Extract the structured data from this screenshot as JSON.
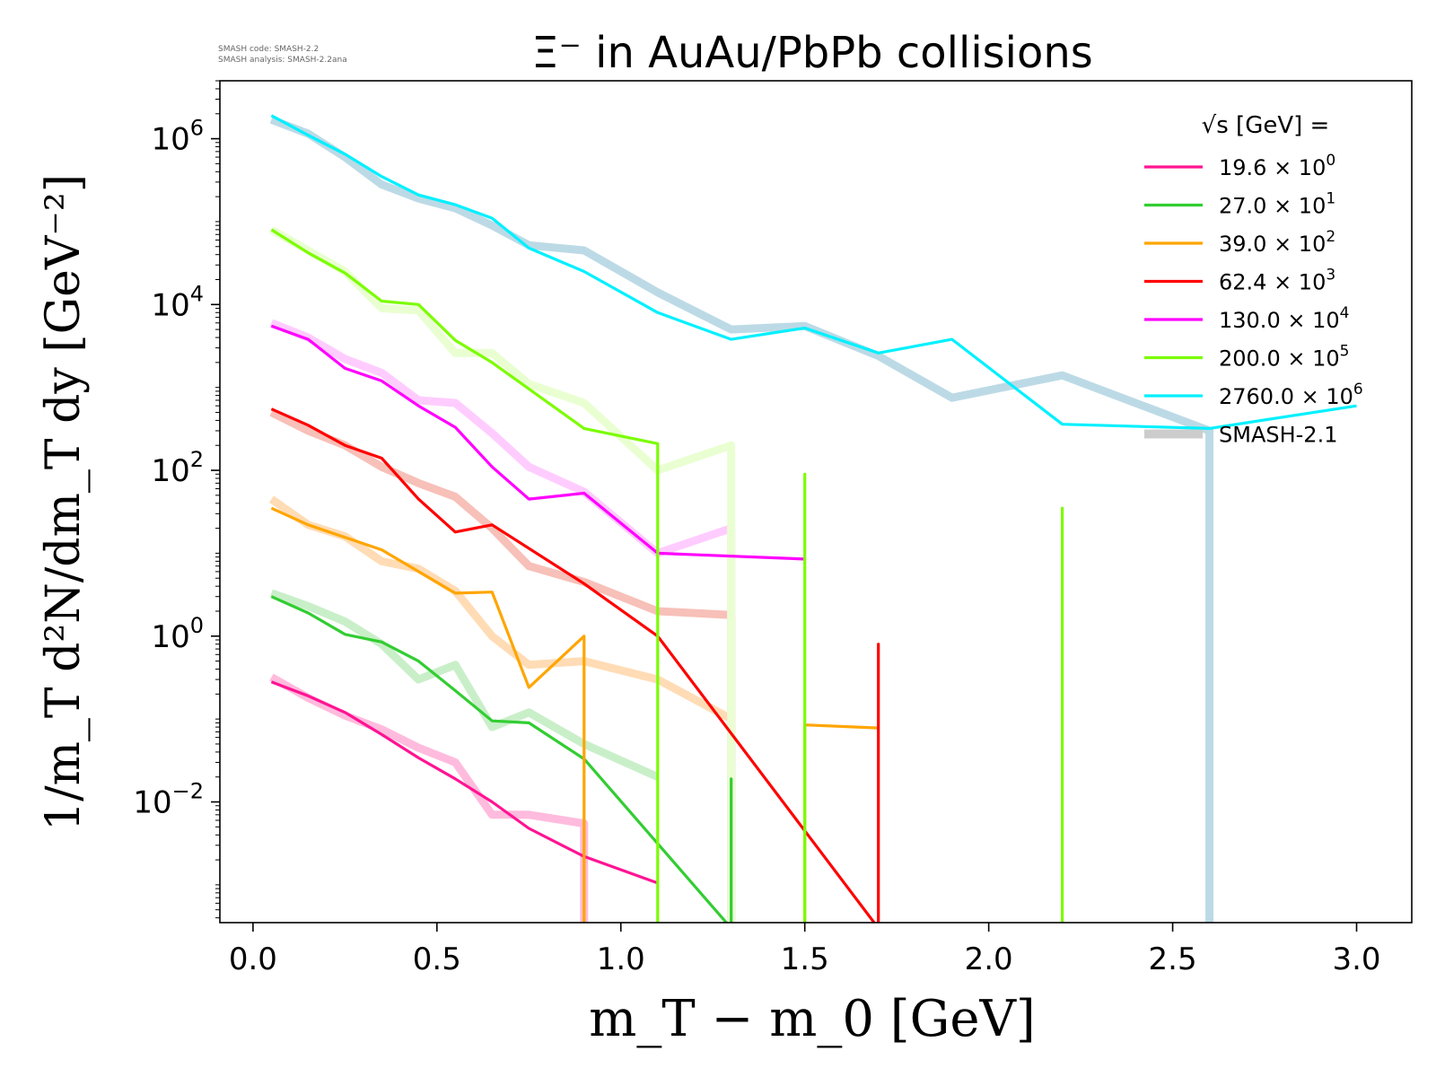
{
  "meta": {
    "code_line": "SMASH code:      SMASH-2.2",
    "analysis_line": "SMASH analysis: SMASH-2.2ana"
  },
  "chart_data": {
    "type": "line",
    "title": "Ξ⁻ in AuAu/PbPb collisions",
    "xlabel": "m_T − m_0 [GeV]",
    "ylabel": "1/m_T d²N/dm_T dy [GeV⁻²]",
    "xlim": [
      -0.09,
      3.15
    ],
    "ylim": [
      0.00035,
      5000000
    ],
    "yscale": "log",
    "grid": false,
    "legend_position": "top-right",
    "legend_title": "√s [GeV] =",
    "x_ticks": [
      0.0,
      0.5,
      1.0,
      1.5,
      2.0,
      2.5,
      3.0
    ],
    "x_tick_labels": [
      "0.0",
      "0.5",
      "1.0",
      "1.5",
      "2.0",
      "2.5",
      "3.0"
    ],
    "y_ticks": [
      0.01,
      1,
      100,
      10000,
      1000000
    ],
    "y_tick_labels": [
      {
        "base": "10",
        "exp": "−2"
      },
      {
        "base": "10",
        "exp": "0"
      },
      {
        "base": "10",
        "exp": "2"
      },
      {
        "base": "10",
        "exp": "4"
      },
      {
        "base": "10",
        "exp": "6"
      }
    ],
    "series": [
      {
        "name": "19.6",
        "multiplier": "10",
        "exponent": "0",
        "color": "#ff1493",
        "x": [
          0.05,
          0.15,
          0.25,
          0.35,
          0.45,
          0.55,
          0.65,
          0.75,
          0.9,
          1.1
        ],
        "y": [
          0.28,
          0.19,
          0.12,
          0.065,
          0.034,
          0.019,
          0.01,
          0.0048,
          0.0022,
          0.00105
        ]
      },
      {
        "name": "27.0",
        "multiplier": "10",
        "exponent": "1",
        "color": "#32cd32",
        "x": [
          0.05,
          0.15,
          0.25,
          0.35,
          0.45,
          0.55,
          0.65,
          0.75,
          0.9,
          1.3,
          1.3,
          1.3
        ],
        "y": [
          3.0,
          1.9,
          1.05,
          0.85,
          0.5,
          0.22,
          0.095,
          0.09,
          0.033,
          0.0003,
          0.019,
          0.0003
        ]
      },
      {
        "name": "39.0",
        "multiplier": "10",
        "exponent": "2",
        "color": "#ffa500",
        "x": [
          0.05,
          0.15,
          0.35,
          0.55,
          0.65,
          0.75,
          0.9,
          0.9,
          0.9,
          1.5,
          1.5,
          1.7
        ],
        "y": [
          35,
          22,
          11,
          3.3,
          3.4,
          0.24,
          1.0,
          0.0003,
          0.0003,
          0.0003,
          0.085,
          0.078
        ]
      },
      {
        "name": "62.4",
        "multiplier": "10",
        "exponent": "3",
        "color": "#ff0000",
        "x": [
          0.05,
          0.15,
          0.25,
          0.35,
          0.45,
          0.55,
          0.65,
          0.9,
          1.1,
          1.7,
          1.7,
          1.7
        ],
        "y": [
          550,
          350,
          200,
          140,
          45,
          18,
          22,
          4.3,
          1.0,
          0.0003,
          0.8,
          0.0003
        ]
      },
      {
        "name": "130.0",
        "multiplier": "10",
        "exponent": "4",
        "color": "#ff00ff",
        "x": [
          0.05,
          0.15,
          0.25,
          0.35,
          0.45,
          0.55,
          0.65,
          0.75,
          0.9,
          1.1,
          1.5
        ],
        "y": [
          5500,
          3800,
          1700,
          1200,
          600,
          330,
          110,
          45,
          53,
          10,
          8.5
        ]
      },
      {
        "name": "200.0",
        "multiplier": "10",
        "exponent": "5",
        "color": "#7cfc00",
        "x": [
          0.05,
          0.15,
          0.25,
          0.35,
          0.45,
          0.55,
          0.65,
          0.9,
          1.1,
          1.1,
          1.5,
          1.5,
          1.5,
          2.2,
          2.2,
          2.2
        ],
        "y": [
          80000,
          42000,
          24000,
          11000,
          10000,
          3700,
          2000,
          320,
          210,
          0.0003,
          0.0003,
          90,
          0.0003,
          0.0003,
          35,
          0.0003
        ]
      },
      {
        "name": "2760.0",
        "multiplier": "10",
        "exponent": "6",
        "color": "#00f0ff",
        "x": [
          0.05,
          0.15,
          0.25,
          0.35,
          0.45,
          0.55,
          0.65,
          0.75,
          0.9,
          1.1,
          1.3,
          1.5,
          1.7,
          1.9,
          2.2,
          2.6,
          3.0
        ],
        "y": [
          1900000,
          1100000,
          650000,
          350000,
          210000,
          160000,
          110000,
          48000,
          25000,
          8000,
          3800,
          5200,
          2600,
          3800,
          360,
          320,
          600
        ]
      }
    ],
    "reference_series": {
      "name": "SMASH-2.1",
      "color": "#cccccc",
      "curves": [
        {
          "color": "#ffbbdd",
          "x": [
            0.05,
            0.15,
            0.25,
            0.35,
            0.45,
            0.55,
            0.65,
            0.75,
            0.9,
            0.9
          ],
          "y": [
            0.32,
            0.18,
            0.11,
            0.075,
            0.045,
            0.03,
            0.007,
            0.007,
            0.0055,
            0.0003
          ]
        },
        {
          "color": "#c9efc9",
          "x": [
            0.05,
            0.15,
            0.25,
            0.35,
            0.45,
            0.55,
            0.65,
            0.75,
            0.9,
            1.1
          ],
          "y": [
            3.3,
            2.3,
            1.5,
            0.8,
            0.3,
            0.45,
            0.08,
            0.12,
            0.05,
            0.02
          ]
        },
        {
          "color": "#ffdcb5",
          "x": [
            0.05,
            0.15,
            0.25,
            0.35,
            0.45,
            0.55,
            0.65,
            0.75,
            0.9,
            1.1,
            1.3,
            1.3
          ],
          "y": [
            45,
            22,
            16,
            8,
            6.5,
            3.5,
            1.0,
            0.45,
            0.5,
            0.3,
            0.1,
            0.0003
          ]
        },
        {
          "color": "#f7c0b8",
          "x": [
            0.05,
            0.15,
            0.25,
            0.35,
            0.45,
            0.55,
            0.65,
            0.75,
            0.9,
            1.1,
            1.3,
            1.3
          ],
          "y": [
            500,
            300,
            200,
            110,
            70,
            48,
            20,
            7,
            4.5,
            2.0,
            1.8,
            0.0003
          ]
        },
        {
          "color": "#ffccff",
          "x": [
            0.05,
            0.15,
            0.25,
            0.35,
            0.45,
            0.55,
            0.65,
            0.75,
            0.9,
            1.1,
            1.3,
            1.3
          ],
          "y": [
            6000,
            4000,
            2200,
            1500,
            700,
            650,
            280,
            110,
            55,
            10,
            20,
            0.0003
          ]
        },
        {
          "color": "#e9ffd2",
          "x": [
            0.05,
            0.15,
            0.25,
            0.35,
            0.45,
            0.55,
            0.65,
            0.75,
            0.9,
            1.1,
            1.3,
            1.3
          ],
          "y": [
            80000,
            45000,
            25000,
            9000,
            8500,
            2600,
            2600,
            1100,
            650,
            100,
            200,
            0.0003
          ]
        },
        {
          "color": "#bcdae6",
          "x": [
            0.05,
            0.15,
            0.25,
            0.35,
            0.45,
            0.55,
            0.65,
            0.75,
            0.9,
            1.1,
            1.3,
            1.5,
            1.7,
            1.9,
            2.2,
            2.6,
            2.6
          ],
          "y": [
            1700000,
            1150000,
            600000,
            280000,
            190000,
            145000,
            90000,
            52000,
            45000,
            14000,
            5000,
            5500,
            2400,
            750,
            1400,
            300,
            0.0003
          ]
        }
      ]
    }
  }
}
